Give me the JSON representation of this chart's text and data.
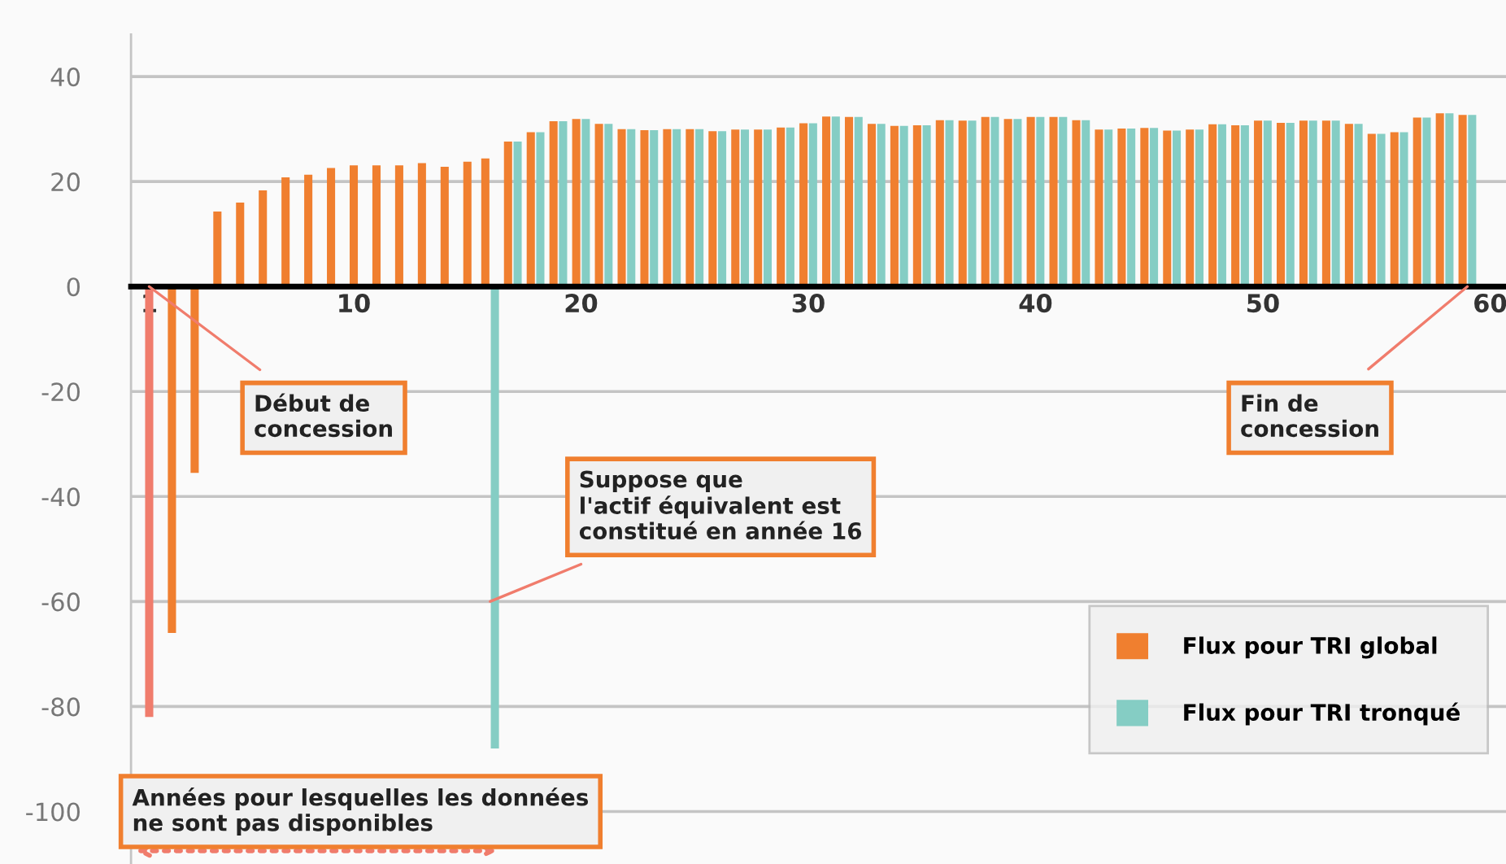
{
  "chart_data": {
    "type": "bar",
    "x": [
      1,
      2,
      3,
      4,
      5,
      6,
      7,
      8,
      9,
      10,
      11,
      12,
      13,
      14,
      15,
      16,
      17,
      18,
      19,
      20,
      21,
      22,
      23,
      24,
      25,
      26,
      27,
      28,
      29,
      30,
      31,
      32,
      33,
      34,
      35,
      36,
      37,
      38,
      39,
      40,
      41,
      42,
      43,
      44,
      45,
      46,
      47,
      48,
      49,
      50,
      51,
      52,
      53,
      54,
      55,
      56,
      57,
      58,
      59
    ],
    "series": [
      {
        "name": "Flux pour TRI global",
        "color": "#f07f2f",
        "colors": [
          "#f07c6c",
          "#f07f2f",
          "#f07f2f",
          "#f07f2f",
          "#f07f2f",
          "#f07f2f",
          "#f07f2f",
          "#f07f2f",
          "#f07f2f",
          "#f07f2f",
          "#f07f2f",
          "#f07f2f",
          "#f07f2f",
          "#f07f2f",
          "#f07f2f",
          "#f07f2f",
          "#f07f2f",
          "#f07f2f",
          "#f07f2f",
          "#f07f2f",
          "#f07f2f",
          "#f07f2f",
          "#f07f2f",
          "#f07f2f",
          "#f07f2f",
          "#f07f2f",
          "#f07f2f",
          "#f07f2f",
          "#f07f2f",
          "#f07f2f",
          "#f07f2f",
          "#f07f2f",
          "#f07f2f",
          "#f07f2f",
          "#f07f2f",
          "#f07f2f",
          "#f07f2f",
          "#f07f2f",
          "#f07f2f",
          "#f07f2f",
          "#f07f2f",
          "#f07f2f",
          "#f07f2f",
          "#f07f2f",
          "#f07f2f",
          "#f07f2f",
          "#f07f2f",
          "#f07f2f",
          "#f07f2f",
          "#f07f2f",
          "#f07f2f",
          "#f07f2f",
          "#f07f2f",
          "#f07f2f",
          "#f07f2f",
          "#f07f2f",
          "#f07f2f",
          "#f07f2f",
          "#f07f2f"
        ],
        "values": [
          -82,
          -66,
          -35.5,
          14.3,
          16,
          18.3,
          20.8,
          21.3,
          22.6,
          23.1,
          23.1,
          23.1,
          23.5,
          22.8,
          23.8,
          24.4,
          27.6,
          29.4,
          31.5,
          31.9,
          31,
          30,
          29.8,
          30,
          30,
          29.6,
          29.9,
          29.9,
          30.3,
          31.1,
          32.4,
          32.3,
          31,
          30.6,
          30.7,
          31.7,
          31.6,
          32.3,
          31.9,
          32.3,
          32.3,
          31.7,
          29.9,
          30.1,
          30.2,
          29.7,
          29.9,
          30.9,
          30.7,
          31.6,
          31.2,
          31.6,
          31.6,
          31,
          29.1,
          29.4,
          32.2,
          33,
          32.7
        ]
      },
      {
        "name": "Flux pour TRI tronqué",
        "color": "#85cdc4",
        "values": [
          null,
          null,
          null,
          null,
          null,
          null,
          null,
          null,
          null,
          null,
          null,
          null,
          null,
          null,
          null,
          -88,
          27.6,
          29.4,
          31.5,
          31.9,
          31,
          30,
          29.8,
          30,
          30,
          29.6,
          29.9,
          29.9,
          30.3,
          31.1,
          32.4,
          32.3,
          31,
          30.6,
          30.7,
          31.7,
          31.6,
          32.3,
          31.9,
          32.3,
          32.3,
          31.7,
          29.9,
          30.1,
          30.2,
          29.7,
          29.9,
          30.9,
          30.7,
          31.6,
          31.2,
          31.6,
          31.6,
          31,
          29.1,
          29.4,
          32.2,
          33,
          32.7
        ]
      }
    ],
    "xlim": [
      0.2,
      60.7
    ],
    "xticks": [
      1,
      10,
      20,
      30,
      40,
      50,
      60
    ],
    "ylim": [
      -110,
      48
    ],
    "yticks": [
      -100,
      -80,
      -60,
      -40,
      -20,
      0,
      20,
      40
    ],
    "grid": "y",
    "legend": "bottom right",
    "annotations": [
      {
        "text": "Début de\nconcession",
        "x": 1,
        "y": 0
      },
      {
        "text": "Suppose que\nl'actif équivalent est\nconstitué en année 16",
        "x": 16,
        "y": -60
      },
      {
        "text": "Fin de\nconcession",
        "x": 59,
        "y": 0
      },
      "Années pour lesquelles les données\nne sont pas disponibles"
    ]
  }
}
